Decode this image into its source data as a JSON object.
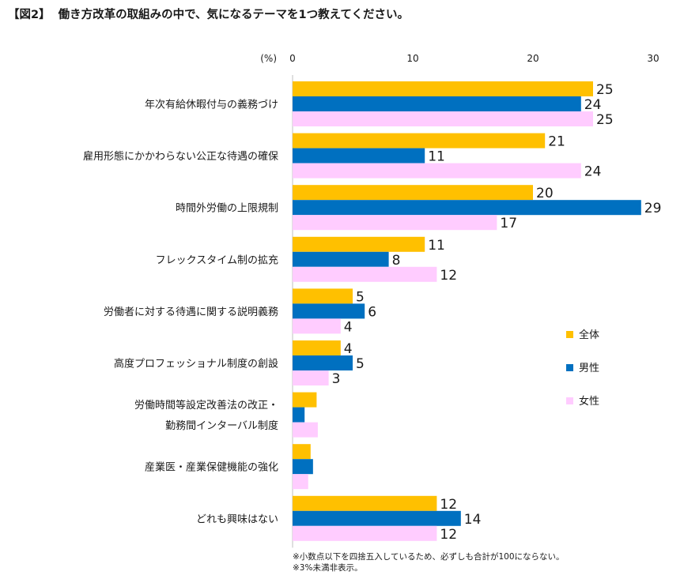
{
  "chart_data": {
    "type": "bar",
    "orientation": "horizontal",
    "title_tag": "【図2】",
    "title": "働き方改革の取組みの中で、気になるテーマを1つ教えてください。",
    "unit_label": "(%)",
    "xlim": [
      0,
      30
    ],
    "xticks": [
      "0",
      "10",
      "20",
      "30"
    ],
    "categories": [
      [
        "年次有給休暇付与の義務づけ"
      ],
      [
        "雇用形態にかかわらない公正な待遇の確保"
      ],
      [
        "時間外労働の上限規制"
      ],
      [
        "フレックスタイム制の拡充"
      ],
      [
        "労働者に対する待遇に関する説明義務"
      ],
      [
        "高度プロフェッショナル制度の創設"
      ],
      [
        "労働時間等設定改善法の改正・",
        "勤務間インターバル制度"
      ],
      [
        "産業医・産業保健機能の強化"
      ],
      [
        "どれも興味はない"
      ]
    ],
    "series": [
      {
        "name": "全体",
        "color": "#FFC000",
        "values": [
          25,
          21,
          20,
          11,
          5,
          4,
          2,
          1.5,
          12
        ],
        "labels": [
          "25",
          "21",
          "20",
          "11",
          "5",
          "4",
          "",
          "",
          "12"
        ]
      },
      {
        "name": "男性",
        "color": "#0070C0",
        "values": [
          24,
          11,
          29,
          8,
          6,
          5,
          1,
          1.7,
          14
        ],
        "labels": [
          "24",
          "11",
          "29",
          "8",
          "6",
          "5",
          "",
          "",
          "14"
        ]
      },
      {
        "name": "女性",
        "color": "#FFCCFF",
        "values": [
          25,
          24,
          17,
          12,
          4,
          3,
          2.1,
          1.3,
          12
        ],
        "labels": [
          "25",
          "24",
          "17",
          "12",
          "4",
          "3",
          "",
          "",
          "12"
        ]
      }
    ],
    "legend_position": "right"
  },
  "notes": [
    "※小数点以下を四捨五入しているため、必ずしも合計が100にならない。",
    "※3%未満非表示。"
  ]
}
